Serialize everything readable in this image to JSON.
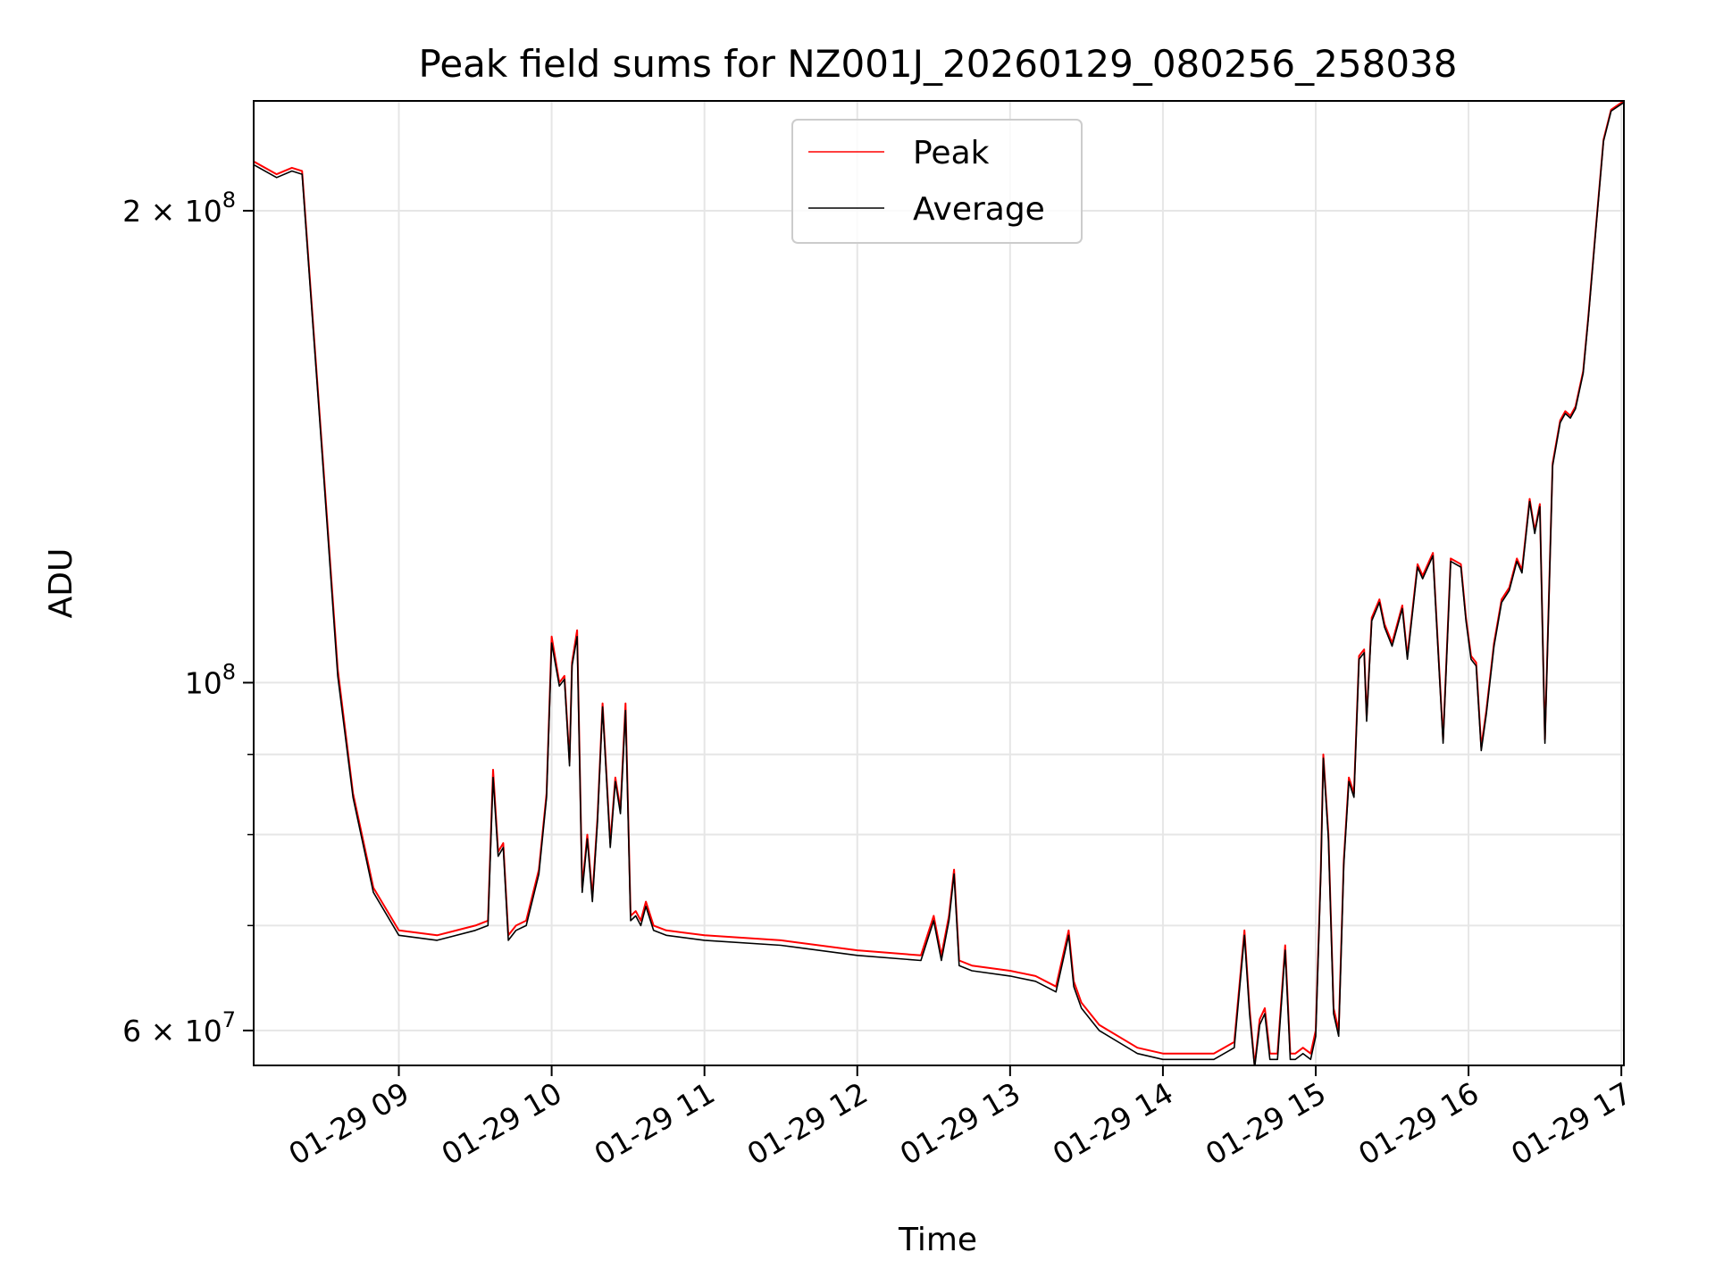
{
  "chart_data": {
    "type": "line",
    "title": "Peak field sums for NZ001J_20260129_080256_258038",
    "xlabel": "Time",
    "ylabel": "ADU",
    "y_scale": "log",
    "xlim": [
      "2026-01-29 08:03",
      "2026-01-29 17:01"
    ],
    "ylim": [
      57000000,
      235000000
    ],
    "grid": true,
    "legend_position": "top-center",
    "x_ticks": [
      {
        "value": "2026-01-29 09:00",
        "label": "01-29 09"
      },
      {
        "value": "2026-01-29 10:00",
        "label": "01-29 10"
      },
      {
        "value": "2026-01-29 11:00",
        "label": "01-29 11"
      },
      {
        "value": "2026-01-29 12:00",
        "label": "01-29 12"
      },
      {
        "value": "2026-01-29 13:00",
        "label": "01-29 13"
      },
      {
        "value": "2026-01-29 14:00",
        "label": "01-29 14"
      },
      {
        "value": "2026-01-29 15:00",
        "label": "01-29 15"
      },
      {
        "value": "2026-01-29 16:00",
        "label": "01-29 16"
      },
      {
        "value": "2026-01-29 17:00",
        "label": "01-29 17"
      }
    ],
    "y_ticks": [
      {
        "value": 60000000,
        "label": "6 × 10^7",
        "mantissa": "6",
        "exponent": "7"
      },
      {
        "value": 100000000,
        "label": "10^8",
        "mantissa": "",
        "exponent": "8"
      },
      {
        "value": 200000000,
        "label": "2 × 10^8",
        "mantissa": "2",
        "exponent": "8"
      }
    ],
    "series": [
      {
        "name": "Peak",
        "color": "#ff0000",
        "x": [
          "2026-01-29 08:03",
          "2026-01-29 08:12",
          "2026-01-29 08:18",
          "2026-01-29 08:22",
          "2026-01-29 08:30",
          "2026-01-29 08:36",
          "2026-01-29 08:42",
          "2026-01-29 08:50",
          "2026-01-29 09:00",
          "2026-01-29 09:15",
          "2026-01-29 09:30",
          "2026-01-29 09:35",
          "2026-01-29 09:37",
          "2026-01-29 09:39",
          "2026-01-29 09:41",
          "2026-01-29 09:43",
          "2026-01-29 09:46",
          "2026-01-29 09:50",
          "2026-01-29 09:55",
          "2026-01-29 09:58",
          "2026-01-29 10:00",
          "2026-01-29 10:03",
          "2026-01-29 10:05",
          "2026-01-29 10:07",
          "2026-01-29 10:08",
          "2026-01-29 10:10",
          "2026-01-29 10:12",
          "2026-01-29 10:14",
          "2026-01-29 10:16",
          "2026-01-29 10:18",
          "2026-01-29 10:20",
          "2026-01-29 10:23",
          "2026-01-29 10:25",
          "2026-01-29 10:27",
          "2026-01-29 10:29",
          "2026-01-29 10:31",
          "2026-01-29 10:33",
          "2026-01-29 10:35",
          "2026-01-29 10:37",
          "2026-01-29 10:40",
          "2026-01-29 10:45",
          "2026-01-29 11:00",
          "2026-01-29 11:30",
          "2026-01-29 12:00",
          "2026-01-29 12:25",
          "2026-01-29 12:30",
          "2026-01-29 12:33",
          "2026-01-29 12:36",
          "2026-01-29 12:38",
          "2026-01-29 12:40",
          "2026-01-29 12:45",
          "2026-01-29 13:00",
          "2026-01-29 13:10",
          "2026-01-29 13:18",
          "2026-01-29 13:23",
          "2026-01-29 13:25",
          "2026-01-29 13:28",
          "2026-01-29 13:35",
          "2026-01-29 13:50",
          "2026-01-29 14:00",
          "2026-01-29 14:20",
          "2026-01-29 14:28",
          "2026-01-29 14:32",
          "2026-01-29 14:34",
          "2026-01-29 14:36",
          "2026-01-29 14:38",
          "2026-01-29 14:40",
          "2026-01-29 14:42",
          "2026-01-29 14:45",
          "2026-01-29 14:48",
          "2026-01-29 14:50",
          "2026-01-29 14:52",
          "2026-01-29 14:55",
          "2026-01-29 14:58",
          "2026-01-29 15:00",
          "2026-01-29 15:02",
          "2026-01-29 15:03",
          "2026-01-29 15:05",
          "2026-01-29 15:07",
          "2026-01-29 15:09",
          "2026-01-29 15:11",
          "2026-01-29 15:13",
          "2026-01-29 15:15",
          "2026-01-29 15:17",
          "2026-01-29 15:19",
          "2026-01-29 15:20",
          "2026-01-29 15:22",
          "2026-01-29 15:25",
          "2026-01-29 15:27",
          "2026-01-29 15:30",
          "2026-01-29 15:34",
          "2026-01-29 15:36",
          "2026-01-29 15:40",
          "2026-01-29 15:42",
          "2026-01-29 15:46",
          "2026-01-29 15:50",
          "2026-01-29 15:53",
          "2026-01-29 15:57",
          "2026-01-29 15:59",
          "2026-01-29 16:01",
          "2026-01-29 16:03",
          "2026-01-29 16:05",
          "2026-01-29 16:07",
          "2026-01-29 16:10",
          "2026-01-29 16:13",
          "2026-01-29 16:16",
          "2026-01-29 16:19",
          "2026-01-29 16:21",
          "2026-01-29 16:24",
          "2026-01-29 16:26",
          "2026-01-29 16:28",
          "2026-01-29 16:30",
          "2026-01-29 16:33",
          "2026-01-29 16:36",
          "2026-01-29 16:38",
          "2026-01-29 16:40",
          "2026-01-29 16:42",
          "2026-01-29 16:45",
          "2026-01-29 16:47",
          "2026-01-29 16:50",
          "2026-01-29 16:53",
          "2026-01-29 16:56",
          "2026-01-29 17:01"
        ],
        "values": [
          215000000,
          211000000,
          213000000,
          212000000,
          140000000,
          102000000,
          85000000,
          74000000,
          69500000,
          69000000,
          70000000,
          70500000,
          88000000,
          78000000,
          79000000,
          69000000,
          70000000,
          70500000,
          76000000,
          85000000,
          107000000,
          100000000,
          101000000,
          89000000,
          103000000,
          108000000,
          74000000,
          80000000,
          73000000,
          82000000,
          97000000,
          79000000,
          87000000,
          83000000,
          97000000,
          71000000,
          71500000,
          70500000,
          72500000,
          70000000,
          69500000,
          69000000,
          68500000,
          67500000,
          67000000,
          71000000,
          67000000,
          71000000,
          76000000,
          66500000,
          66000000,
          65500000,
          65000000,
          64000000,
          69500000,
          64500000,
          62500000,
          60500000,
          58500000,
          58000000,
          58000000,
          59000000,
          69500000,
          62000000,
          57000000,
          61000000,
          62000000,
          58000000,
          58000000,
          68000000,
          58000000,
          58000000,
          58500000,
          58000000,
          60000000,
          76000000,
          90000000,
          80000000,
          62000000,
          60000000,
          77000000,
          87000000,
          85000000,
          104000000,
          105000000,
          95000000,
          110000000,
          113000000,
          109000000,
          106000000,
          112000000,
          104000000,
          119000000,
          117000000,
          121000000,
          92000000,
          120000000,
          119000000,
          110000000,
          104000000,
          103000000,
          91000000,
          96000000,
          106000000,
          113000000,
          115000000,
          120000000,
          118000000,
          131000000,
          125000000,
          130000000,
          92000000,
          138000000,
          147000000,
          149000000,
          148000000,
          150000000,
          158000000,
          171000000,
          195000000,
          222000000,
          232000000,
          235000000
        ]
      },
      {
        "name": "Average",
        "color": "#000000",
        "x": [
          "2026-01-29 08:03",
          "2026-01-29 08:12",
          "2026-01-29 08:18",
          "2026-01-29 08:22",
          "2026-01-29 08:30",
          "2026-01-29 08:36",
          "2026-01-29 08:42",
          "2026-01-29 08:50",
          "2026-01-29 09:00",
          "2026-01-29 09:15",
          "2026-01-29 09:30",
          "2026-01-29 09:35",
          "2026-01-29 09:37",
          "2026-01-29 09:39",
          "2026-01-29 09:41",
          "2026-01-29 09:43",
          "2026-01-29 09:46",
          "2026-01-29 09:50",
          "2026-01-29 09:55",
          "2026-01-29 09:58",
          "2026-01-29 10:00",
          "2026-01-29 10:03",
          "2026-01-29 10:05",
          "2026-01-29 10:07",
          "2026-01-29 10:08",
          "2026-01-29 10:10",
          "2026-01-29 10:12",
          "2026-01-29 10:14",
          "2026-01-29 10:16",
          "2026-01-29 10:18",
          "2026-01-29 10:20",
          "2026-01-29 10:23",
          "2026-01-29 10:25",
          "2026-01-29 10:27",
          "2026-01-29 10:29",
          "2026-01-29 10:31",
          "2026-01-29 10:33",
          "2026-01-29 10:35",
          "2026-01-29 10:37",
          "2026-01-29 10:40",
          "2026-01-29 10:45",
          "2026-01-29 11:00",
          "2026-01-29 11:30",
          "2026-01-29 12:00",
          "2026-01-29 12:25",
          "2026-01-29 12:30",
          "2026-01-29 12:33",
          "2026-01-29 12:36",
          "2026-01-29 12:38",
          "2026-01-29 12:40",
          "2026-01-29 12:45",
          "2026-01-29 13:00",
          "2026-01-29 13:10",
          "2026-01-29 13:18",
          "2026-01-29 13:23",
          "2026-01-29 13:25",
          "2026-01-29 13:28",
          "2026-01-29 13:35",
          "2026-01-29 13:50",
          "2026-01-29 14:00",
          "2026-01-29 14:20",
          "2026-01-29 14:28",
          "2026-01-29 14:32",
          "2026-01-29 14:34",
          "2026-01-29 14:36",
          "2026-01-29 14:38",
          "2026-01-29 14:40",
          "2026-01-29 14:42",
          "2026-01-29 14:45",
          "2026-01-29 14:48",
          "2026-01-29 14:50",
          "2026-01-29 14:52",
          "2026-01-29 14:55",
          "2026-01-29 14:58",
          "2026-01-29 15:00",
          "2026-01-29 15:02",
          "2026-01-29 15:03",
          "2026-01-29 15:05",
          "2026-01-29 15:07",
          "2026-01-29 15:09",
          "2026-01-29 15:11",
          "2026-01-29 15:13",
          "2026-01-29 15:15",
          "2026-01-29 15:17",
          "2026-01-29 15:19",
          "2026-01-29 15:20",
          "2026-01-29 15:22",
          "2026-01-29 15:25",
          "2026-01-29 15:27",
          "2026-01-29 15:30",
          "2026-01-29 15:34",
          "2026-01-29 15:36",
          "2026-01-29 15:40",
          "2026-01-29 15:42",
          "2026-01-29 15:46",
          "2026-01-29 15:50",
          "2026-01-29 15:53",
          "2026-01-29 15:57",
          "2026-01-29 15:59",
          "2026-01-29 16:01",
          "2026-01-29 16:03",
          "2026-01-29 16:05",
          "2026-01-29 16:07",
          "2026-01-29 16:10",
          "2026-01-29 16:13",
          "2026-01-29 16:16",
          "2026-01-29 16:19",
          "2026-01-29 16:21",
          "2026-01-29 16:24",
          "2026-01-29 16:26",
          "2026-01-29 16:28",
          "2026-01-29 16:30",
          "2026-01-29 16:33",
          "2026-01-29 16:36",
          "2026-01-29 16:38",
          "2026-01-29 16:40",
          "2026-01-29 16:42",
          "2026-01-29 16:45",
          "2026-01-29 16:47",
          "2026-01-29 16:50",
          "2026-01-29 16:53",
          "2026-01-29 16:56",
          "2026-01-29 17:01"
        ],
        "values": [
          214000000,
          210000000,
          212000000,
          211000000,
          139000000,
          101000000,
          84500000,
          73500000,
          69000000,
          68500000,
          69500000,
          70000000,
          87000000,
          77500000,
          78500000,
          68500000,
          69500000,
          70000000,
          75500000,
          84500000,
          106000000,
          99500000,
          100500000,
          88500000,
          102500000,
          107000000,
          73500000,
          79500000,
          72500000,
          81500000,
          96500000,
          78500000,
          86500000,
          82500000,
          96000000,
          70500000,
          71000000,
          70000000,
          72000000,
          69500000,
          69000000,
          68500000,
          68000000,
          67000000,
          66500000,
          70500000,
          66500000,
          70500000,
          75500000,
          66000000,
          65500000,
          65000000,
          64500000,
          63500000,
          69000000,
          64000000,
          62000000,
          60000000,
          58000000,
          57500000,
          57500000,
          58500000,
          69000000,
          61500000,
          56800000,
          60500000,
          61500000,
          57500000,
          57500000,
          67500000,
          57500000,
          57500000,
          58000000,
          57500000,
          59500000,
          75500000,
          89500000,
          79500000,
          61500000,
          59500000,
          76500000,
          86500000,
          84500000,
          103500000,
          104500000,
          94500000,
          109500000,
          112500000,
          108500000,
          105500000,
          111500000,
          103500000,
          118500000,
          116500000,
          120500000,
          91500000,
          119500000,
          118500000,
          109500000,
          103500000,
          102500000,
          90500000,
          95500000,
          105500000,
          112500000,
          114500000,
          119500000,
          117500000,
          130500000,
          124500000,
          129500000,
          91500000,
          137500000,
          146500000,
          148500000,
          147500000,
          149500000,
          157500000,
          170500000,
          194500000,
          221500000,
          231500000,
          234500000
        ]
      }
    ]
  }
}
